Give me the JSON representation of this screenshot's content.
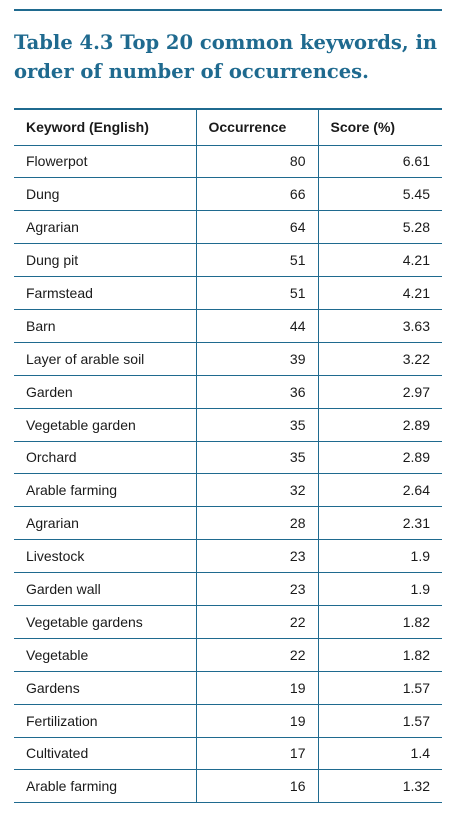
{
  "caption": "Table 4.3 Top 20 common keywords, in order of number of occurrences.",
  "table": {
    "headers": [
      "Keyword (English)",
      "Occurrence",
      "Score (%)"
    ],
    "rows": [
      [
        "Flowerpot",
        "80",
        "6.61"
      ],
      [
        "Dung",
        "66",
        "5.45"
      ],
      [
        "Agrarian",
        "64",
        "5.28"
      ],
      [
        "Dung pit",
        "51",
        "4.21"
      ],
      [
        "Farmstead",
        "51",
        "4.21"
      ],
      [
        "Barn",
        "44",
        "3.63"
      ],
      [
        "Layer of arable soil",
        "39",
        "3.22"
      ],
      [
        "Garden",
        "36",
        "2.97"
      ],
      [
        "Vegetable garden",
        "35",
        "2.89"
      ],
      [
        "Orchard",
        "35",
        "2.89"
      ],
      [
        "Arable farming",
        "32",
        "2.64"
      ],
      [
        "Agrarian",
        "28",
        "2.31"
      ],
      [
        "Livestock",
        "23",
        "1.9"
      ],
      [
        "Garden wall",
        "23",
        "1.9"
      ],
      [
        "Vegetable gardens",
        "22",
        "1.82"
      ],
      [
        "Vegetable",
        "22",
        "1.82"
      ],
      [
        "Gardens",
        "19",
        "1.57"
      ],
      [
        "Fertilization",
        "19",
        "1.57"
      ],
      [
        "Cultivated",
        "17",
        "1.4"
      ],
      [
        "Arable farming",
        "16",
        "1.32"
      ]
    ]
  },
  "colors": {
    "accent": "#1f6a8f"
  }
}
